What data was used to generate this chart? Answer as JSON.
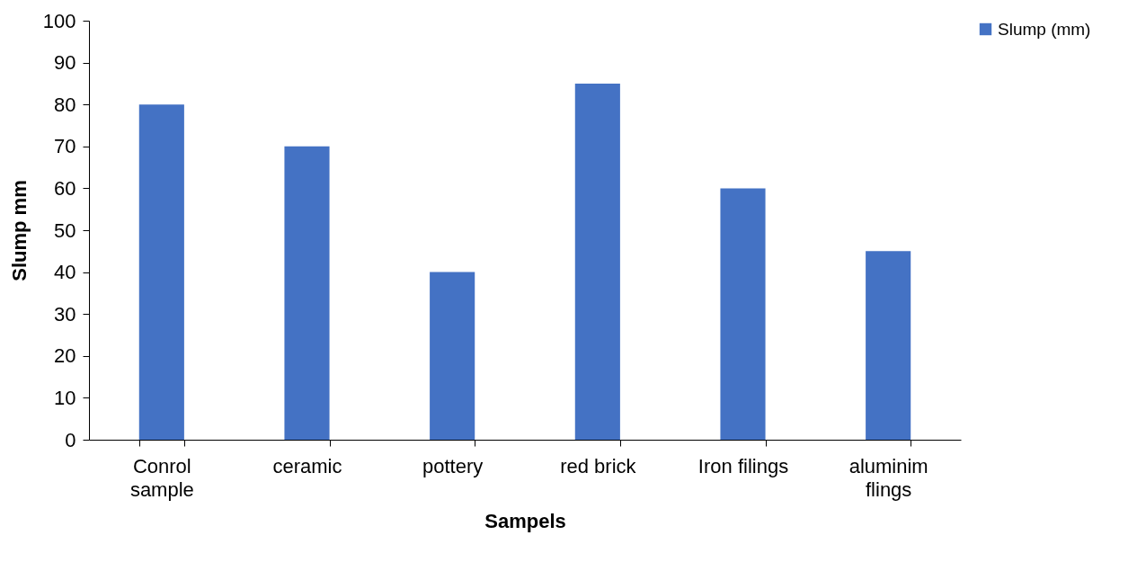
{
  "chart_data": {
    "type": "bar",
    "xlabel": "Sampels",
    "ylabel": "Slump mm",
    "categories": [
      "Conrol sample",
      "ceramic",
      "pottery",
      "red brick",
      "Iron filings",
      "aluminim flings"
    ],
    "series": [
      {
        "name": "Slump (mm)",
        "color": "#4472c4",
        "values": [
          80,
          70,
          40,
          85,
          60,
          45
        ]
      }
    ],
    "ylim": [
      0,
      100
    ],
    "yticks": [
      0,
      10,
      20,
      30,
      40,
      50,
      60,
      70,
      80,
      90,
      100
    ],
    "grid": false,
    "legend": "right"
  }
}
